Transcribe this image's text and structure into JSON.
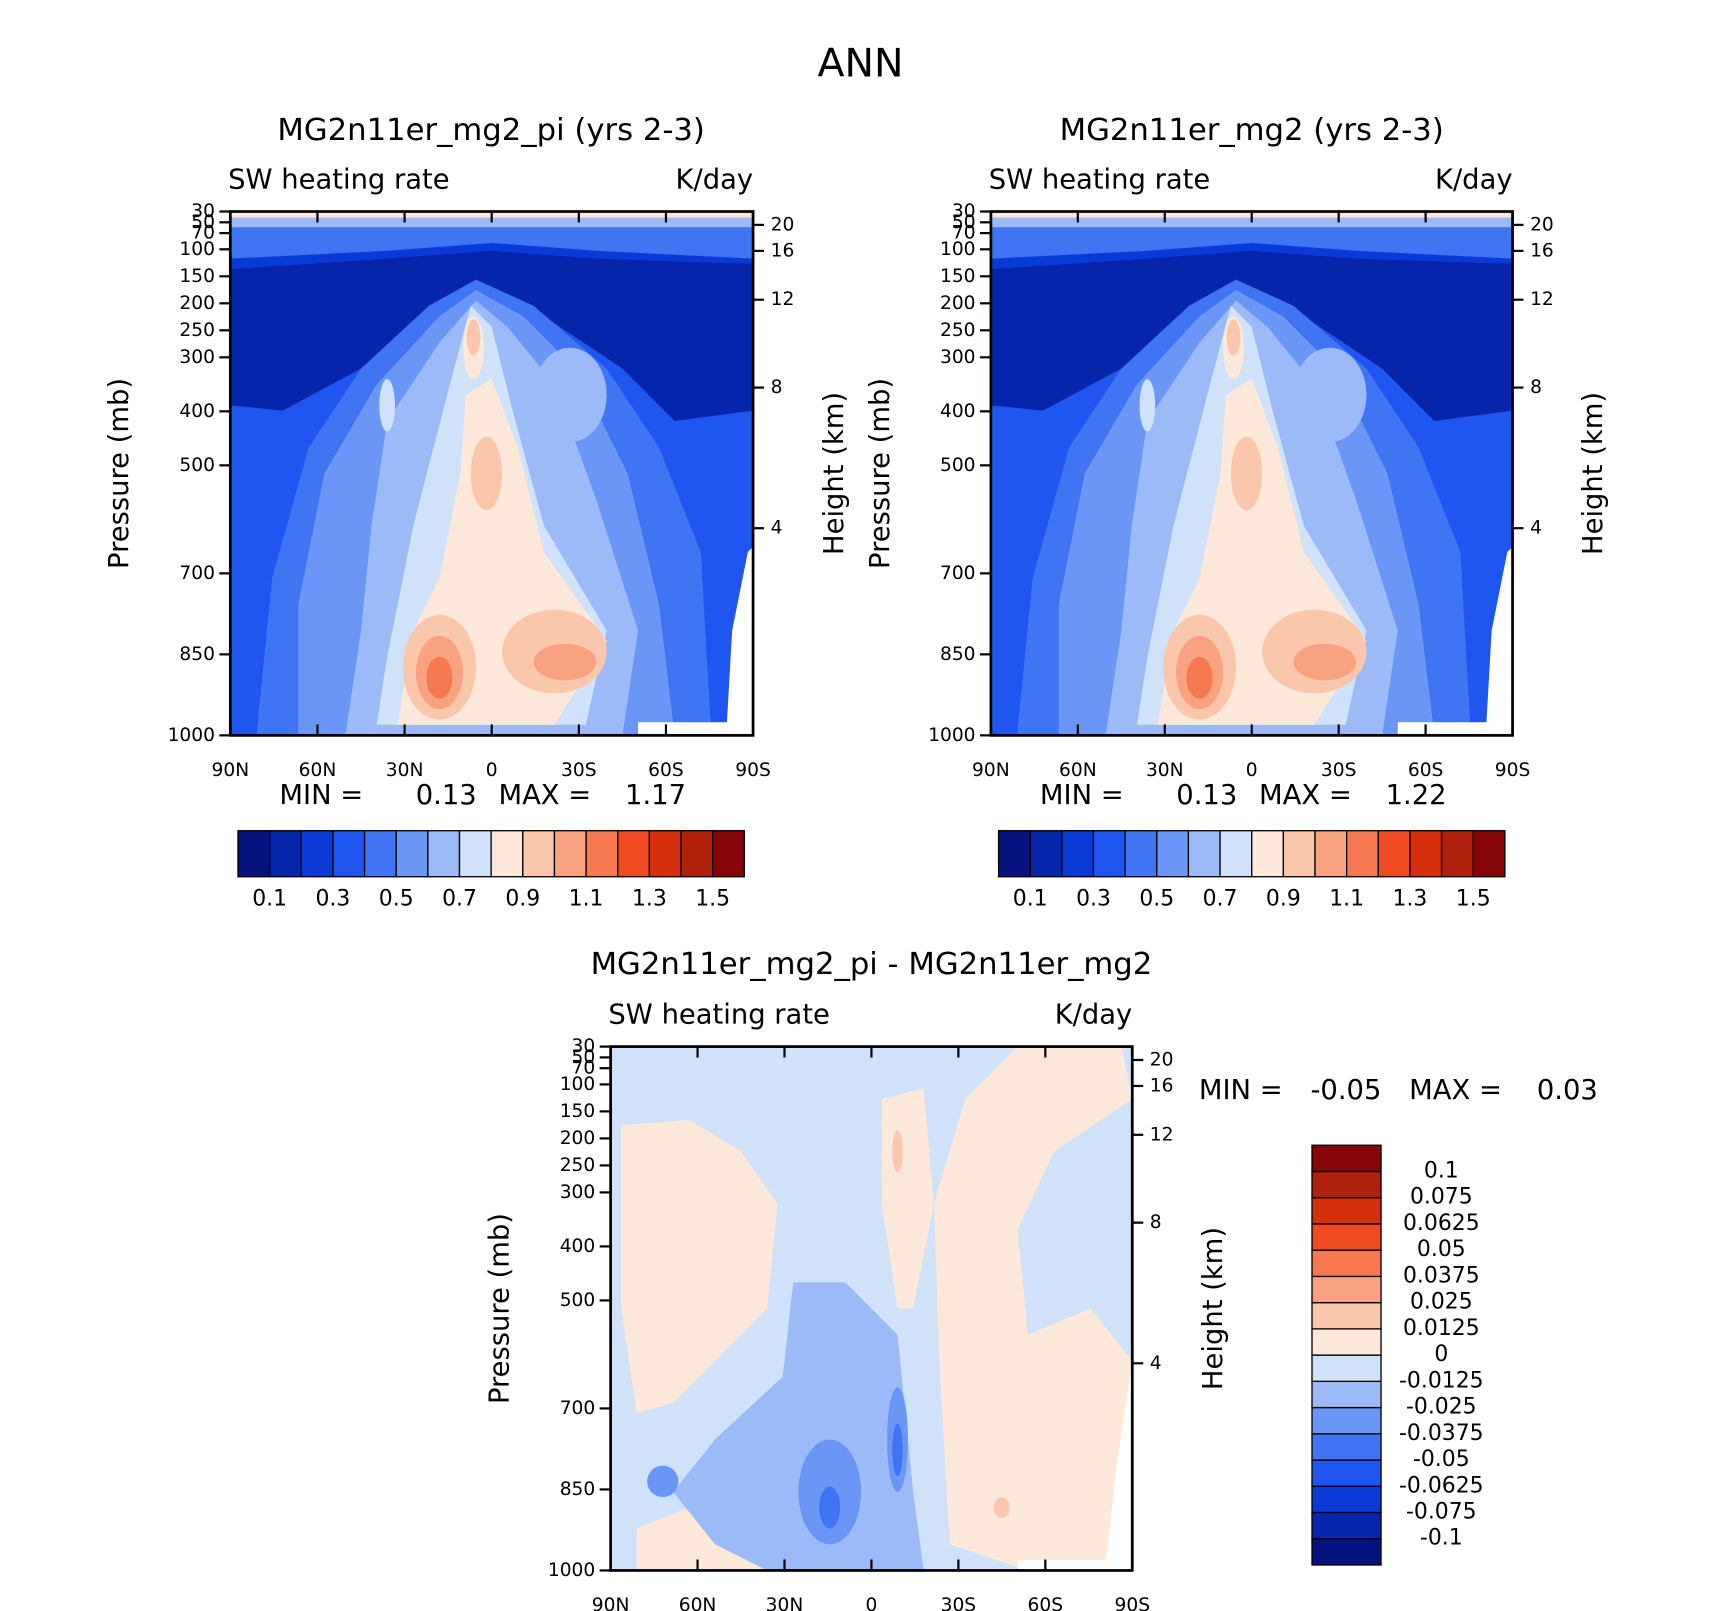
{
  "title": "ANN",
  "chart_data": [
    {
      "type": "contour",
      "title": "MG2n11er_mg2_pi (yrs 2-3)",
      "left_string": "SW heating rate",
      "right_string": "K/day",
      "ylabel": "Pressure (mb)",
      "y2label": "Height (km)",
      "xlim": [
        90,
        -90
      ],
      "xticks": [
        {
          "value": 90,
          "label": "90N"
        },
        {
          "value": 60,
          "label": "60N"
        },
        {
          "value": 30,
          "label": "30N"
        },
        0,
        {
          "value": -30,
          "label": "30S"
        },
        {
          "value": -60,
          "label": "60S"
        },
        {
          "value": -90,
          "label": "90S"
        }
      ],
      "ylim": [
        30,
        1000
      ],
      "yticks": [
        30,
        50,
        70,
        100,
        150,
        200,
        250,
        300,
        400,
        500,
        700,
        850,
        1000
      ],
      "y2ticks": [
        20,
        16,
        12,
        8,
        4
      ],
      "min_label": "MIN =",
      "min": 0.13,
      "max_label": "MAX =",
      "max": 1.17,
      "colorbar": {
        "orientation": "horizontal",
        "colors": [
          "#06137f",
          "#0526ab",
          "#0a3ad6",
          "#1f56f0",
          "#3f74f2",
          "#6a97f5",
          "#9bbaf7",
          "#cfe2fa",
          "#fde8da",
          "#fbc7ac",
          "#f9a27f",
          "#f67850",
          "#f04a21",
          "#d52f0d",
          "#b0210b",
          "#850509"
        ],
        "labels": [
          0.1,
          0.3,
          0.5,
          0.7,
          0.9,
          1.1,
          1.3,
          1.5
        ]
      }
    },
    {
      "type": "contour",
      "title": "MG2n11er_mg2 (yrs 2-3)",
      "left_string": "SW heating rate",
      "right_string": "K/day",
      "ylabel": "Pressure (mb)",
      "y2label": "Height (km)",
      "xlim": [
        90,
        -90
      ],
      "xticks": [
        {
          "value": 90,
          "label": "90N"
        },
        {
          "value": 60,
          "label": "60N"
        },
        {
          "value": 30,
          "label": "30N"
        },
        0,
        {
          "value": -30,
          "label": "30S"
        },
        {
          "value": -60,
          "label": "60S"
        },
        {
          "value": -90,
          "label": "90S"
        }
      ],
      "ylim": [
        30,
        1000
      ],
      "yticks": [
        30,
        50,
        70,
        100,
        150,
        200,
        250,
        300,
        400,
        500,
        700,
        850,
        1000
      ],
      "y2ticks": [
        20,
        16,
        12,
        8,
        4
      ],
      "min_label": "MIN =",
      "min": 0.13,
      "max_label": "MAX =",
      "max": 1.22,
      "colorbar": {
        "orientation": "horizontal",
        "colors": [
          "#06137f",
          "#0526ab",
          "#0a3ad6",
          "#1f56f0",
          "#3f74f2",
          "#6a97f5",
          "#9bbaf7",
          "#cfe2fa",
          "#fde8da",
          "#fbc7ac",
          "#f9a27f",
          "#f67850",
          "#f04a21",
          "#d52f0d",
          "#b0210b",
          "#850509"
        ],
        "labels": [
          0.1,
          0.3,
          0.5,
          0.7,
          0.9,
          1.1,
          1.3,
          1.5
        ]
      }
    },
    {
      "type": "contour",
      "title": "MG2n11er_mg2_pi - MG2n11er_mg2",
      "left_string": "SW heating rate",
      "right_string": "K/day",
      "ylabel": "Pressure (mb)",
      "y2label": "Height (km)",
      "xlim": [
        90,
        -90
      ],
      "xticks": [
        {
          "value": 90,
          "label": "90N"
        },
        {
          "value": 60,
          "label": "60N"
        },
        {
          "value": 30,
          "label": "30N"
        },
        0,
        {
          "value": -30,
          "label": "30S"
        },
        {
          "value": -60,
          "label": "60S"
        },
        {
          "value": -90,
          "label": "90S"
        }
      ],
      "ylim": [
        30,
        1000
      ],
      "yticks": [
        30,
        50,
        70,
        100,
        150,
        200,
        250,
        300,
        400,
        500,
        700,
        850,
        1000
      ],
      "y2ticks": [
        20,
        16,
        12,
        8,
        4
      ],
      "min_label": "MIN =",
      "min": -0.05,
      "max_label": "MAX =",
      "max": 0.03,
      "colorbar": {
        "orientation": "vertical",
        "colors": [
          "#06137f",
          "#0526ab",
          "#0a3ad6",
          "#1f56f0",
          "#3f74f2",
          "#6a97f5",
          "#9bbaf7",
          "#cfe2fa",
          "#fde8da",
          "#fbc7ac",
          "#f9a27f",
          "#f67850",
          "#f04a21",
          "#d52f0d",
          "#b0210b",
          "#850509"
        ],
        "labels": [
          -0.1,
          -0.075,
          -0.0625,
          -0.05,
          -0.0375,
          -0.025,
          -0.0125,
          0,
          0.0125,
          0.025,
          0.0375,
          0.05,
          0.0625,
          0.075,
          0.1
        ]
      }
    }
  ]
}
